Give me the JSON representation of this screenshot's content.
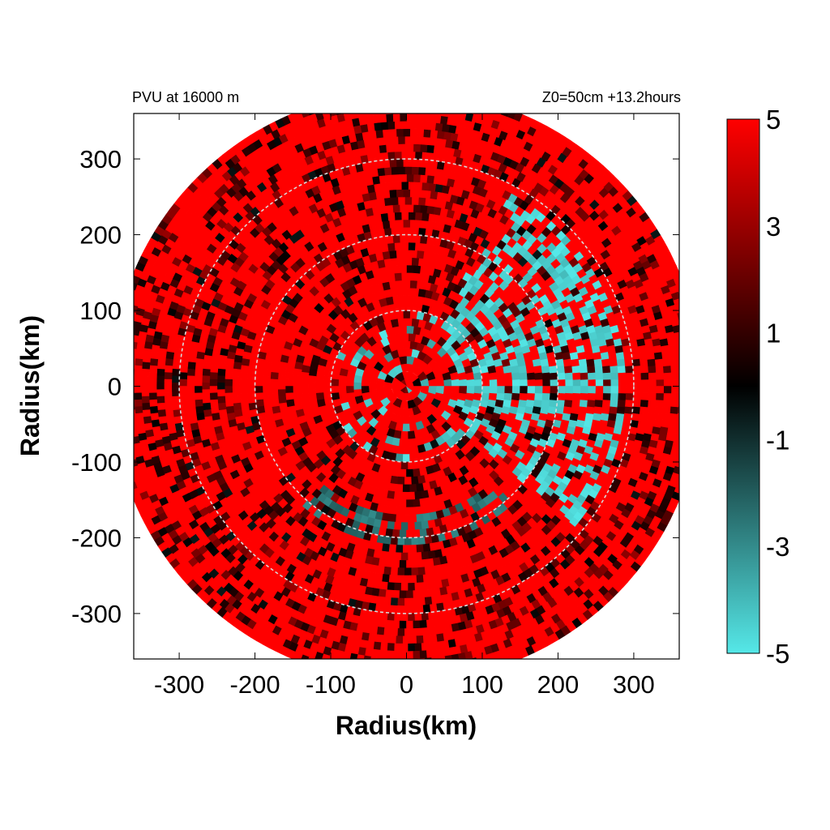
{
  "chart_data": {
    "type": "heatmap",
    "title_left": "PVU at 16000 m",
    "title_right": "Z0=50cm  +13.2hours",
    "xlabel": "Radius(km)",
    "ylabel": "Radius(km)",
    "xlim": [
      -360,
      360
    ],
    "ylim": [
      -360,
      360
    ],
    "xticks": [
      "-300",
      "-200",
      "-100",
      "0",
      "100",
      "200",
      "300"
    ],
    "yticks": [
      "300",
      "200",
      "100",
      "0",
      "-100",
      "-200",
      "-300"
    ],
    "xtick_values": [
      -300,
      -200,
      -100,
      0,
      100,
      200,
      300
    ],
    "ytick_values": [
      300,
      200,
      100,
      0,
      -100,
      -200,
      -300
    ],
    "domain_radius": 390,
    "reference_circles": [
      100,
      200,
      300
    ],
    "colorbar": {
      "range": [
        -5,
        5
      ],
      "labels": [
        "5",
        "3",
        "1",
        "-1",
        "-3",
        "-5"
      ],
      "label_values": [
        5,
        3,
        1,
        -1,
        -3,
        -5
      ],
      "stops": [
        {
          "value": -5,
          "color": "#55e8e8"
        },
        {
          "value": 0,
          "color": "#000000"
        },
        {
          "value": 5,
          "color": "#ff0000"
        }
      ]
    },
    "field_description_values": {
      "dominant_value": 5,
      "negative_regions": [
        {
          "r_min": 60,
          "r_max": 290,
          "theta_min_deg": -40,
          "theta_max_deg": 60,
          "value": -5
        },
        {
          "r_min": 170,
          "r_max": 210,
          "theta_min_deg": 225,
          "theta_max_deg": 310,
          "value": -3
        }
      ]
    },
    "grid": false,
    "colors": {
      "positive": "#ff0000",
      "zero": "#000000",
      "negative": "#55e8e8"
    }
  }
}
